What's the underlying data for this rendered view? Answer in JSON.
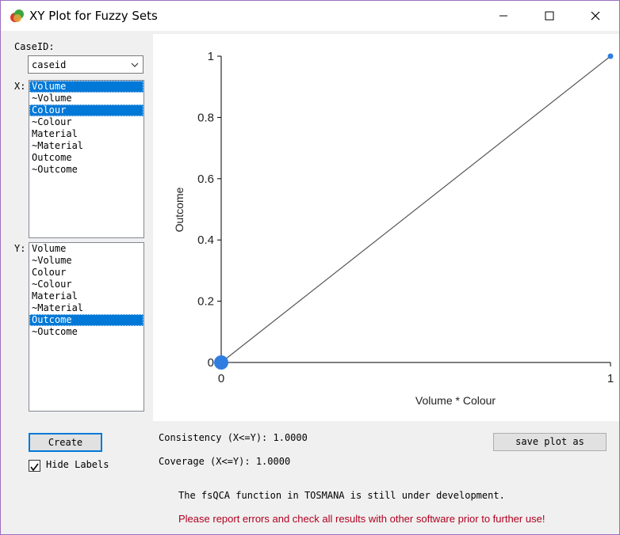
{
  "window": {
    "title": "XY Plot for Fuzzy Sets"
  },
  "labels": {
    "caseid": "CaseID:",
    "x": "X:",
    "y": "Y:"
  },
  "caseid_select": {
    "value": "caseid"
  },
  "x_list": {
    "items": [
      "Volume",
      "~Volume",
      "Colour",
      "~Colour",
      "Material",
      "~Material",
      "Outcome",
      "~Outcome"
    ],
    "selected": [
      "Volume",
      "Colour"
    ]
  },
  "y_list": {
    "items": [
      "Volume",
      "~Volume",
      "Colour",
      "~Colour",
      "Material",
      "~Material",
      "Outcome",
      "~Outcome"
    ],
    "selected": [
      "Outcome"
    ]
  },
  "buttons": {
    "create": "Create",
    "save_plot": "save plot as"
  },
  "checkbox": {
    "hide_labels": "Hide Labels",
    "checked": true
  },
  "stats": {
    "consistency": "Consistency (X<=Y): 1.0000",
    "coverage": "Coverage (X<=Y): 1.0000"
  },
  "messages": {
    "dev_note": "The fsQCA function in TOSMANA is still under development.",
    "warning": "Please report errors and check all results with other software prior to further use!"
  },
  "colors": {
    "selection": "#0078d7",
    "point": "#2f7de1",
    "warning": "#b00020"
  },
  "chart_data": {
    "type": "scatter",
    "xlabel": "Volume * Colour",
    "ylabel": "Outcome",
    "xlim": [
      0,
      1
    ],
    "ylim": [
      0,
      1
    ],
    "x_ticks": [
      "0",
      "1"
    ],
    "y_ticks": [
      "0",
      "0.2",
      "0.4",
      "0.6",
      "0.8",
      "1"
    ],
    "points": [
      {
        "x": 0,
        "y": 0,
        "size": "large"
      },
      {
        "x": 1,
        "y": 1,
        "size": "small"
      }
    ],
    "reference_line": {
      "from": [
        0,
        0
      ],
      "to": [
        1,
        1
      ]
    },
    "grid": false
  }
}
